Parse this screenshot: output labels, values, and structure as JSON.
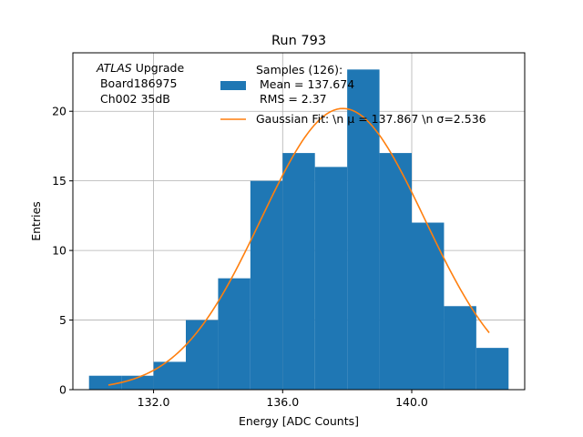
{
  "chart_data": {
    "type": "bar",
    "title": "Run 793",
    "xlabel": "Energy [ADC Counts]",
    "ylabel": "Entries",
    "xlim": [
      129.5,
      143.5
    ],
    "ylim": [
      0,
      24.2
    ],
    "grid": true,
    "xticks": [
      132,
      136,
      140
    ],
    "xtick_labels": [
      "132.0",
      "136.0",
      "140.0"
    ],
    "yticks": [
      0,
      5,
      10,
      15,
      20
    ],
    "ytick_labels": [
      "0",
      "5",
      "10",
      "15",
      "20"
    ],
    "bin_edges": [
      130,
      131,
      132,
      133,
      134,
      135,
      136,
      137,
      138,
      139,
      140,
      141,
      142,
      143
    ],
    "counts": [
      1,
      1,
      2,
      5,
      8,
      15,
      17,
      16,
      23,
      17,
      12,
      6,
      3
    ],
    "bar_color": "#1f77b4",
    "fit": {
      "mean": 137.867,
      "sigma": 2.536,
      "amplitude": 20.2,
      "x_range": [
        130.6,
        142.4
      ],
      "color": "#ff7f0e"
    },
    "annotation": {
      "line1_italic": "ATLAS",
      "line1_rest": " Upgrade",
      "line2": " Board186975",
      "line3": " Ch002 35dB"
    },
    "legend": {
      "placement": "top-right",
      "hist_label_lines": [
        "Samples (126):",
        " Mean = 137.674",
        " RMS = 2.37"
      ],
      "fit_label": "Gaussian Fit: \\n μ = 137.867 \\n σ=2.536"
    }
  }
}
